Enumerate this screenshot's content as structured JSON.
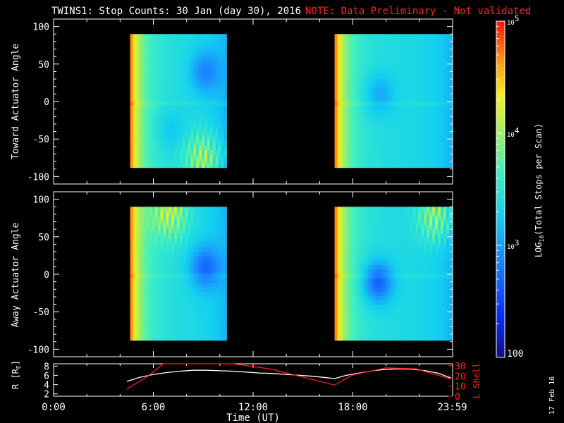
{
  "title": "TWINS1: Stop Counts: 30 Jan (day  30), 2016",
  "note": "NOTE: Data Preliminary - Not validated",
  "colors": {
    "background": "#000000",
    "axis": "#ffffff",
    "note": "#ff2020",
    "rshell": "#ffffff",
    "lshell": "#ff1a1a"
  },
  "chart_data": [
    {
      "type": "heatmap",
      "name": "toward",
      "ylabel": "Toward Actuator Angle",
      "ylim": [
        -110,
        110
      ],
      "yticks": [
        100,
        50,
        0,
        -50,
        -100
      ],
      "xlim": [
        0,
        24
      ],
      "data_blocks": [
        {
          "x_start": 4.6,
          "x_end": 10.4,
          "y_min": -88,
          "y_max": 90
        },
        {
          "x_start": 16.9,
          "x_end": 23.95,
          "y_min": -88,
          "y_max": 90
        }
      ],
      "features": [
        {
          "kind": "minimum",
          "x": 9.1,
          "y": 40,
          "level": 2.85
        },
        {
          "kind": "minimum",
          "x": 19.6,
          "y": 10,
          "level": 2.95
        },
        {
          "kind": "minimum",
          "x": 7.0,
          "y": -37,
          "level": 3.1
        },
        {
          "kind": "noisy-high",
          "x": 9.0,
          "y": -75,
          "level": 4.3
        }
      ]
    },
    {
      "type": "heatmap",
      "name": "away",
      "ylabel": "Away Actuator Angle",
      "ylim": [
        -110,
        110
      ],
      "yticks": [
        100,
        50,
        0,
        -50,
        -100
      ],
      "xlim": [
        0,
        24
      ],
      "data_blocks": [
        {
          "x_start": 4.6,
          "x_end": 10.4,
          "y_min": -88,
          "y_max": 90
        },
        {
          "x_start": 16.9,
          "x_end": 23.95,
          "y_min": -88,
          "y_max": 90
        }
      ],
      "features": [
        {
          "kind": "minimum",
          "x": 9.1,
          "y": 10,
          "level": 2.7
        },
        {
          "kind": "minimum",
          "x": 19.5,
          "y": -10,
          "level": 2.55
        },
        {
          "kind": "noisy-high",
          "x": 7.0,
          "y": 82,
          "level": 4.3
        },
        {
          "kind": "noisy-high",
          "x": 23.0,
          "y": 78,
          "level": 4.3
        }
      ]
    },
    {
      "type": "line",
      "name": "orbit",
      "xlabel": "Time (UT)",
      "xticks": [
        "0:00",
        "6:00",
        "12:00",
        "18:00",
        "23:59"
      ],
      "xtick_hours": [
        0,
        6,
        12,
        18,
        23.98
      ],
      "ylabel_left": "R [R",
      "ylabel_left_sub": "E",
      "ylabel_left_end": "]",
      "ylabel_right": "L Shell",
      "ylim_left": [
        1.5,
        8.5
      ],
      "ylim_right": [
        0,
        32
      ],
      "yticks_left": [
        8,
        6,
        4,
        2
      ],
      "yticks_right": [
        30,
        20,
        10,
        0
      ],
      "series": [
        {
          "axis": "left",
          "x": [
            4.4,
            5.2,
            6.0,
            6.8,
            7.6,
            8.4,
            9.2,
            10.0,
            10.8,
            11.6,
            12.4,
            13.2,
            14.0,
            14.8,
            15.6,
            16.4,
            16.9,
            17.6,
            18.4,
            19.2,
            20.0,
            20.8,
            21.6,
            22.4,
            23.2,
            23.9
          ],
          "y": [
            4.7,
            5.6,
            6.2,
            6.6,
            6.9,
            7.1,
            7.1,
            7.0,
            6.9,
            6.7,
            6.5,
            6.4,
            6.2,
            6.0,
            5.8,
            5.5,
            5.3,
            6.0,
            6.5,
            7.0,
            7.3,
            7.4,
            7.3,
            7.0,
            6.4,
            5.4
          ]
        },
        {
          "axis": "right",
          "x": [
            4.4,
            5.6,
            6.6,
            10.8,
            13.0,
            16.9,
            18.0,
            20.0,
            21.8,
            23.9
          ],
          "y": [
            7,
            19,
            32,
            32,
            27,
            11,
            21,
            28,
            27,
            17
          ]
        }
      ]
    }
  ],
  "colorbar": {
    "label_main": "LOG",
    "label_sub": "10",
    "label_rest": "(Total Stops per Scan)",
    "range_log": [
      2,
      5
    ],
    "tick_major": [
      {
        "v": 5,
        "base": "10",
        "exp": "5"
      },
      {
        "v": 4,
        "base": "10",
        "exp": "4"
      },
      {
        "v": 3,
        "base": "10",
        "exp": "3"
      }
    ],
    "tick_bottom": "100"
  },
  "stamp": "17 Feb 16"
}
